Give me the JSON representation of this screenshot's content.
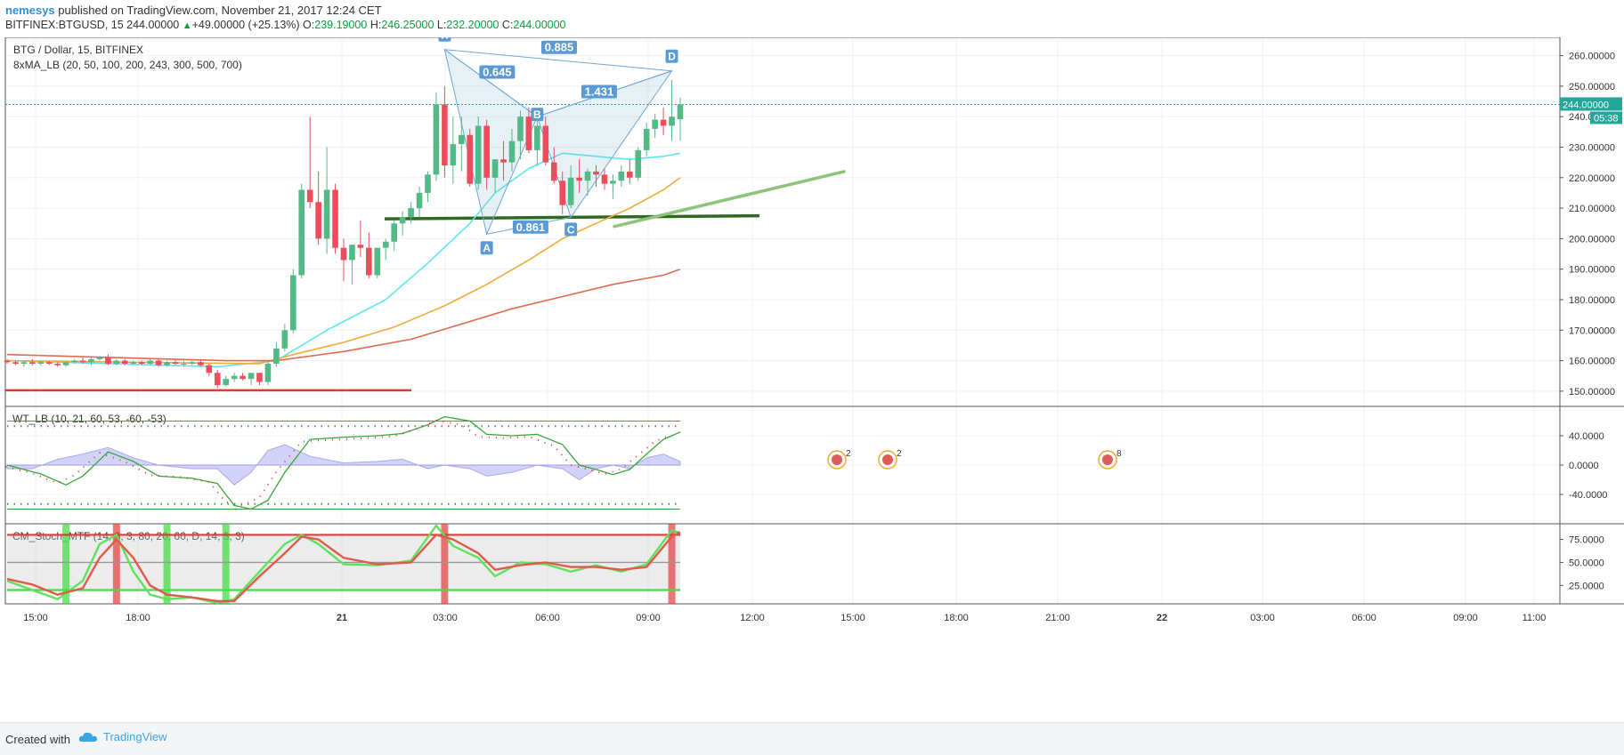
{
  "header": {
    "username": "nemesys",
    "published_text": "published on TradingView.com, November 21, 2017 12:24 CET",
    "symbol_line": "BITFINEX:BTGUSD, 15",
    "last_price": "244.00000",
    "change": "+49.00000 (+25.13%)",
    "o_label": "O:",
    "o_value": "239.19000",
    "h_label": "H:",
    "h_value": "246.25000",
    "l_label": "L:",
    "l_value": "232.20000",
    "c_label": "C:",
    "c_value": "244.00000"
  },
  "footer": {
    "created_with": "Created with",
    "brand": "TradingView"
  },
  "chart_data": [
    {
      "type": "candlestick",
      "title": "BTG / Dollar, 15, BITFINEX",
      "indicator_label": "8xMA_LB (20, 50, 100, 200, 243, 300, 500, 700)",
      "y_range": [
        145,
        266
      ],
      "y_ticks": [
        "260.00000",
        "250.00000",
        "240.00000",
        "230.00000",
        "220.00000",
        "210.00000",
        "200.00000",
        "190.00000",
        "180.00000",
        "170.00000",
        "160.00000",
        "150.00000"
      ],
      "price_tag": "244.00000",
      "countdown": "05:38",
      "x_ticks": [
        "15:00",
        "18:00",
        "21",
        "03:00",
        "06:00",
        "09:00",
        "12:00",
        "15:00",
        "18:00",
        "21:00",
        "22",
        "03:00",
        "06:00",
        "09:00",
        "11:00"
      ],
      "candles_ohlc": [
        [
          160,
          160.5,
          159,
          159.5
        ],
        [
          159.5,
          160,
          158.5,
          159
        ],
        [
          159,
          160,
          158,
          159.5
        ],
        [
          159.5,
          160.5,
          158.5,
          159
        ],
        [
          159,
          160,
          158.5,
          159.5
        ],
        [
          159.5,
          160,
          158.5,
          159
        ],
        [
          159,
          159.5,
          158,
          158.5
        ],
        [
          158.5,
          160,
          158,
          159.5
        ],
        [
          159.5,
          160.5,
          159,
          160
        ],
        [
          160,
          161,
          159,
          159.5
        ],
        [
          159.5,
          161,
          158.5,
          160.5
        ],
        [
          160.5,
          161.5,
          160,
          161
        ],
        [
          161,
          162,
          158.5,
          159
        ],
        [
          159,
          160.5,
          158.5,
          160
        ],
        [
          160,
          160.5,
          158.5,
          159
        ],
        [
          159,
          160,
          158.5,
          159.5
        ],
        [
          159.5,
          160,
          158.5,
          159
        ],
        [
          159,
          160.5,
          158.5,
          160
        ],
        [
          160,
          160.5,
          158,
          158.5
        ],
        [
          158.5,
          160,
          158,
          159.5
        ],
        [
          159.5,
          160.5,
          158.5,
          159
        ],
        [
          159,
          160,
          158,
          159
        ],
        [
          159,
          160,
          158.5,
          159.5
        ],
        [
          159.5,
          160,
          158,
          158.5
        ],
        [
          158.5,
          159,
          155,
          156
        ],
        [
          156,
          157,
          151,
          152
        ],
        [
          152,
          155,
          151.5,
          154
        ],
        [
          154,
          156,
          153,
          155
        ],
        [
          155,
          156,
          153.5,
          154
        ],
        [
          154,
          156,
          152,
          156
        ],
        [
          156,
          155,
          152,
          153
        ],
        [
          153,
          160,
          152,
          159
        ],
        [
          159,
          166,
          158,
          164
        ],
        [
          164,
          172,
          163,
          170
        ],
        [
          170,
          190,
          169,
          188
        ],
        [
          188,
          218,
          187,
          216
        ],
        [
          216,
          240,
          210,
          212
        ],
        [
          212,
          222,
          198,
          200
        ],
        [
          200,
          230,
          195,
          216
        ],
        [
          216,
          218,
          195,
          197
        ],
        [
          197,
          200,
          186,
          193
        ],
        [
          193,
          198,
          185,
          198
        ],
        [
          198,
          206,
          194,
          197
        ],
        [
          197,
          202,
          187,
          188
        ],
        [
          188,
          197,
          187,
          197
        ],
        [
          197,
          200,
          193,
          199
        ],
        [
          199,
          206,
          196,
          205
        ],
        [
          205,
          209,
          201,
          207
        ],
        [
          207,
          212,
          205,
          210
        ],
        [
          210,
          217,
          207,
          215
        ],
        [
          215,
          222,
          212,
          221
        ],
        [
          221,
          248,
          219,
          244
        ],
        [
          244,
          250,
          220,
          224
        ],
        [
          224,
          240,
          218,
          231
        ],
        [
          231,
          240,
          222,
          234
        ],
        [
          234,
          236,
          217,
          218
        ],
        [
          218,
          240,
          216,
          237
        ],
        [
          237,
          239,
          216,
          220
        ],
        [
          220,
          226,
          215,
          226
        ],
        [
          226,
          232,
          219,
          225
        ],
        [
          225,
          236,
          222,
          232
        ],
        [
          232,
          242,
          226,
          240
        ],
        [
          240,
          243,
          228,
          229
        ],
        [
          229,
          239,
          224,
          237
        ],
        [
          237,
          240,
          224,
          225
        ],
        [
          225,
          230,
          218,
          219
        ],
        [
          219,
          222,
          208,
          211
        ],
        [
          211,
          224,
          210,
          220
        ],
        [
          220,
          226,
          215,
          219
        ],
        [
          219,
          223,
          214,
          222
        ],
        [
          222,
          224,
          217,
          221
        ],
        [
          221,
          223,
          216,
          218
        ],
        [
          218,
          221,
          213,
          219
        ],
        [
          219,
          224,
          217,
          222
        ],
        [
          222,
          226,
          218,
          220
        ],
        [
          220,
          230,
          219,
          229
        ],
        [
          229,
          238,
          227,
          236
        ],
        [
          236,
          241,
          233,
          239
        ],
        [
          239,
          243,
          234,
          237
        ],
        [
          237,
          252,
          232,
          240
        ],
        [
          239.19,
          246.25,
          232.2,
          244
        ]
      ],
      "series": [
        {
          "name": "MA20",
          "color": "#5de8ea",
          "points": [
            [
              0,
              160
            ],
            [
              25,
              158
            ],
            [
              32,
              160
            ],
            [
              38,
              170
            ],
            [
              45,
              180
            ],
            [
              50,
              192
            ],
            [
              55,
              205
            ],
            [
              58,
              215
            ],
            [
              62,
              223
            ],
            [
              66,
              228
            ],
            [
              70,
              227
            ],
            [
              74,
              226
            ],
            [
              78,
              227
            ],
            [
              80,
              228
            ]
          ]
        },
        {
          "name": "MA50",
          "color": "#f3a93b",
          "points": [
            [
              0,
              160
            ],
            [
              30,
              159
            ],
            [
              34,
              162
            ],
            [
              40,
              166
            ],
            [
              46,
              171
            ],
            [
              52,
              178
            ],
            [
              57,
              185
            ],
            [
              62,
              193
            ],
            [
              66,
              200
            ],
            [
              70,
              205
            ],
            [
              74,
              210
            ],
            [
              78,
              216
            ],
            [
              80,
              220
            ]
          ]
        },
        {
          "name": "MA100",
          "color": "#e06a4f",
          "points": [
            [
              0,
              162
            ],
            [
              26,
              160
            ],
            [
              32,
              160
            ],
            [
              40,
              163
            ],
            [
              48,
              167
            ],
            [
              54,
              172
            ],
            [
              60,
              177
            ],
            [
              66,
              181
            ],
            [
              72,
              185
            ],
            [
              78,
              188
            ],
            [
              80,
              190
            ]
          ]
        }
      ],
      "harmonic": {
        "X": [
          52,
          262
        ],
        "A": [
          57,
          201.5
        ],
        "B": [
          63,
          240
        ],
        "C": [
          67,
          207
        ],
        "D": [
          79,
          255
        ],
        "labels": {
          "X": "X",
          "A": "A",
          "B": "B",
          "C": "C",
          "D": "D"
        },
        "ratios": {
          "XB": "0.645",
          "XD": "0.885",
          "BD": "1.431",
          "AC": "0.861"
        }
      }
    },
    {
      "type": "line",
      "title": "WT_LB (10, 21, 60, 53, -60, -53)",
      "y_range": [
        -80,
        80
      ],
      "y_ticks": [
        "40.0000",
        "0.0000",
        "-40.0000"
      ],
      "levels": [
        60,
        53,
        -53,
        -60
      ],
      "wt1": [
        [
          0,
          0
        ],
        [
          4,
          -12
        ],
        [
          7,
          -27
        ],
        [
          9,
          -15
        ],
        [
          12,
          18
        ],
        [
          15,
          5
        ],
        [
          18,
          -15
        ],
        [
          22,
          -18
        ],
        [
          25,
          -25
        ],
        [
          27,
          -55
        ],
        [
          29,
          -60
        ],
        [
          31,
          -48
        ],
        [
          33,
          -10
        ],
        [
          36,
          35
        ],
        [
          40,
          38
        ],
        [
          44,
          40
        ],
        [
          47,
          43
        ],
        [
          50,
          55
        ],
        [
          52,
          66
        ],
        [
          55,
          60
        ],
        [
          57,
          42
        ],
        [
          60,
          40
        ],
        [
          63,
          42
        ],
        [
          66,
          28
        ],
        [
          68,
          0
        ],
        [
          70,
          -6
        ],
        [
          72,
          -13
        ],
        [
          74,
          -6
        ],
        [
          76,
          15
        ],
        [
          78,
          35
        ],
        [
          80,
          45
        ]
      ],
      "histogram": [
        [
          0,
          -5
        ],
        [
          3,
          -5
        ],
        [
          6,
          8
        ],
        [
          9,
          15
        ],
        [
          12,
          24
        ],
        [
          15,
          10
        ],
        [
          18,
          0
        ],
        [
          22,
          -5
        ],
        [
          25,
          -5
        ],
        [
          27,
          -27
        ],
        [
          29,
          -10
        ],
        [
          31,
          20
        ],
        [
          33,
          28
        ],
        [
          36,
          12
        ],
        [
          40,
          3
        ],
        [
          44,
          5
        ],
        [
          47,
          8
        ],
        [
          50,
          -5
        ],
        [
          52,
          0
        ],
        [
          55,
          -5
        ],
        [
          57,
          -15
        ],
        [
          60,
          -10
        ],
        [
          63,
          0
        ],
        [
          66,
          -5
        ],
        [
          68,
          -20
        ],
        [
          70,
          -5
        ],
        [
          72,
          0
        ],
        [
          74,
          -5
        ],
        [
          76,
          10
        ],
        [
          78,
          15
        ],
        [
          80,
          5
        ]
      ]
    },
    {
      "type": "line",
      "title": "CM_Stoch_MTF (14, 3, 3, 80, 20, 60, D, 14, 3, 3)",
      "y_range": [
        5,
        92
      ],
      "y_ticks": [
        "75.0000",
        "50.0000",
        "25.0000"
      ],
      "levels": [
        80,
        50,
        20
      ],
      "k": [
        [
          0,
          30
        ],
        [
          3,
          20
        ],
        [
          6,
          10
        ],
        [
          9,
          30
        ],
        [
          11,
          70
        ],
        [
          13,
          80
        ],
        [
          15,
          40
        ],
        [
          17,
          15
        ],
        [
          19,
          10
        ],
        [
          22,
          12
        ],
        [
          25,
          6
        ],
        [
          27,
          10
        ],
        [
          30,
          40
        ],
        [
          33,
          70
        ],
        [
          35,
          80
        ],
        [
          37,
          70
        ],
        [
          40,
          48
        ],
        [
          44,
          47
        ],
        [
          48,
          52
        ],
        [
          51,
          90
        ],
        [
          53,
          68
        ],
        [
          56,
          55
        ],
        [
          58,
          35
        ],
        [
          61,
          50
        ],
        [
          64,
          48
        ],
        [
          67,
          40
        ],
        [
          70,
          47
        ],
        [
          73,
          40
        ],
        [
          76,
          48
        ],
        [
          79,
          85
        ],
        [
          80,
          82
        ]
      ],
      "d": [
        [
          0,
          32
        ],
        [
          3,
          26
        ],
        [
          6,
          15
        ],
        [
          9,
          22
        ],
        [
          11,
          55
        ],
        [
          13,
          75
        ],
        [
          15,
          55
        ],
        [
          17,
          25
        ],
        [
          19,
          15
        ],
        [
          22,
          12
        ],
        [
          25,
          8
        ],
        [
          27,
          8
        ],
        [
          30,
          35
        ],
        [
          33,
          60
        ],
        [
          35,
          78
        ],
        [
          37,
          75
        ],
        [
          40,
          55
        ],
        [
          44,
          48
        ],
        [
          48,
          50
        ],
        [
          51,
          80
        ],
        [
          53,
          75
        ],
        [
          56,
          60
        ],
        [
          58,
          42
        ],
        [
          61,
          47
        ],
        [
          64,
          50
        ],
        [
          67,
          45
        ],
        [
          70,
          45
        ],
        [
          73,
          42
        ],
        [
          76,
          45
        ],
        [
          79,
          78
        ],
        [
          80,
          83
        ]
      ],
      "green_bars": [
        7,
        19,
        26
      ],
      "red_bars": [
        13,
        52,
        79
      ]
    }
  ]
}
